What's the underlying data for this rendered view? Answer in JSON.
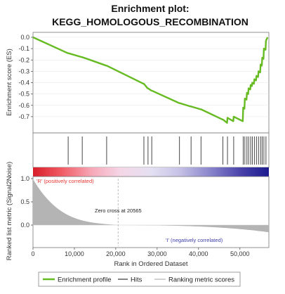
{
  "chart_data": {
    "type": "line",
    "title_line1": "Enrichment plot:",
    "title_line2": "KEGG_HOMOLOGOUS_RECOMBINATION",
    "enrichment_ylabel": "Enrichment score (ES)",
    "ranked_ylabel": "Ranked list metric (Signal2Noise)",
    "xlabel": "Rank in Ordered Dataset",
    "xlim": [
      0,
      57000
    ],
    "x_ticks": [
      0,
      10000,
      20000,
      30000,
      40000,
      50000
    ],
    "x_tick_labels": [
      "0",
      "10,000",
      "20,000",
      "30,000",
      "40,000",
      "50,000"
    ],
    "es_ylim": [
      -0.8,
      0.0
    ],
    "es_ticks": [
      0.0,
      -0.1,
      -0.2,
      -0.3,
      -0.4,
      -0.5,
      -0.6,
      -0.7
    ],
    "es_tick_labels": [
      "0.0",
      "-0.1",
      "-0.2",
      "-0.3",
      "-0.4",
      "-0.5",
      "-0.6",
      "-0.7"
    ],
    "metric_ticks": [
      1.0,
      0.5,
      0.0
    ],
    "metric_tick_labels": [
      "1.0",
      "0.5",
      "0.0"
    ],
    "zero_cross_label": "Zero cross at 20565",
    "zero_cross": 20565,
    "pos_label": "'R' (positively correlated)",
    "neg_label": "'I' (negatively correlated)",
    "legend": [
      "Enrichment profile",
      "Hits",
      "Ranking metric scores"
    ],
    "colors": {
      "profile": "#66bb22",
      "hits": "#333333",
      "metric": "#b4b4b4"
    },
    "hits": [
      8500,
      11900,
      17800,
      26800,
      27800,
      28700,
      35400,
      38200,
      40600,
      45900,
      47000,
      48500,
      50800,
      51200,
      51700,
      52100,
      52600,
      53000,
      53500,
      54000,
      54500,
      55000,
      55400,
      55800,
      56300
    ],
    "profile": [
      [
        0,
        0.0
      ],
      [
        8400,
        -0.14
      ],
      [
        8500,
        -0.14
      ],
      [
        11800,
        -0.175
      ],
      [
        11900,
        -0.175
      ],
      [
        17700,
        -0.25
      ],
      [
        17800,
        -0.25
      ],
      [
        26700,
        -0.41
      ],
      [
        26800,
        -0.41
      ],
      [
        27700,
        -0.45
      ],
      [
        27800,
        -0.45
      ],
      [
        28600,
        -0.47
      ],
      [
        28700,
        -0.47
      ],
      [
        35300,
        -0.58
      ],
      [
        35400,
        -0.58
      ],
      [
        38100,
        -0.61
      ],
      [
        38200,
        -0.61
      ],
      [
        40500,
        -0.635
      ],
      [
        40600,
        -0.635
      ],
      [
        45800,
        -0.725
      ],
      [
        45900,
        -0.725
      ],
      [
        46900,
        -0.755
      ],
      [
        47000,
        -0.71
      ],
      [
        48400,
        -0.74
      ],
      [
        48500,
        -0.7
      ],
      [
        50700,
        -0.74
      ],
      [
        50800,
        -0.62
      ],
      [
        51100,
        -0.63
      ],
      [
        51200,
        -0.54
      ],
      [
        51600,
        -0.55
      ],
      [
        51700,
        -0.49
      ],
      [
        52000,
        -0.5
      ],
      [
        52100,
        -0.45
      ],
      [
        52500,
        -0.46
      ],
      [
        52600,
        -0.42
      ],
      [
        52900,
        -0.43
      ],
      [
        53000,
        -0.4
      ],
      [
        53400,
        -0.41
      ],
      [
        53500,
        -0.37
      ],
      [
        53900,
        -0.38
      ],
      [
        54000,
        -0.34
      ],
      [
        54400,
        -0.35
      ],
      [
        54500,
        -0.3
      ],
      [
        54900,
        -0.31
      ],
      [
        55000,
        -0.24
      ],
      [
        55300,
        -0.25
      ],
      [
        55400,
        -0.18
      ],
      [
        55700,
        -0.19
      ],
      [
        55800,
        -0.1
      ],
      [
        56200,
        -0.11
      ],
      [
        56300,
        -0.03
      ],
      [
        56700,
        0.0
      ]
    ]
  }
}
